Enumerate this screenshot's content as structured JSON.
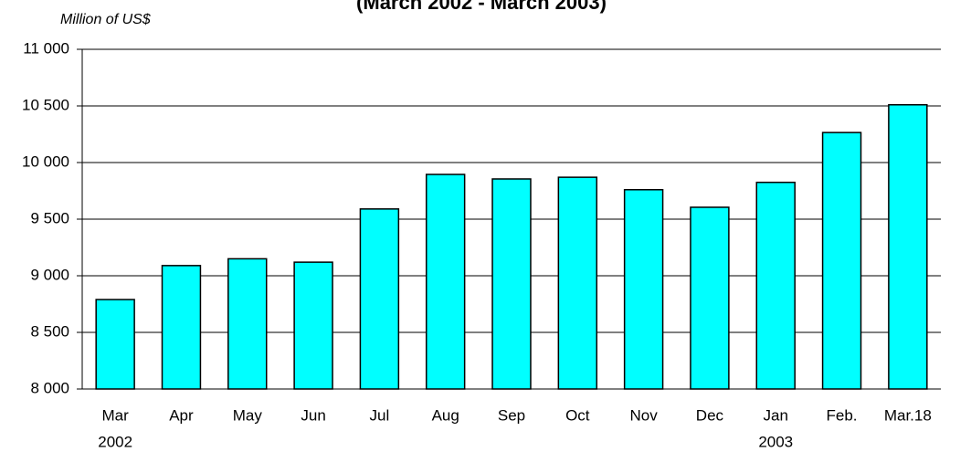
{
  "chart_data": {
    "type": "bar",
    "title": "(March 2002 - March 2003)",
    "y_label": "Million of US$",
    "categories": [
      [
        "Mar",
        "2002"
      ],
      [
        "Apr"
      ],
      [
        "May"
      ],
      [
        "Jun"
      ],
      [
        "Jul"
      ],
      [
        "Aug"
      ],
      [
        "Sep"
      ],
      [
        "Oct"
      ],
      [
        "Nov"
      ],
      [
        "Dec"
      ],
      [
        "Jan",
        "2003"
      ],
      [
        "Feb."
      ],
      [
        "Mar.18"
      ]
    ],
    "values": [
      8790,
      9090,
      9150,
      9120,
      9590,
      9895,
      9855,
      9870,
      9760,
      9605,
      9825,
      10265,
      10510
    ],
    "color": "#00ffff",
    "ylim": [
      8000,
      11000
    ],
    "yticks": [
      {
        "value": 8000,
        "label": "8 000"
      },
      {
        "value": 8500,
        "label": "8 500"
      },
      {
        "value": 9000,
        "label": "9 000"
      },
      {
        "value": 9500,
        "label": "9 500"
      },
      {
        "value": 10000,
        "label": "10 000"
      },
      {
        "value": 10500,
        "label": "10 500"
      },
      {
        "value": 11000,
        "label": "11 000"
      }
    ],
    "grid": true
  }
}
